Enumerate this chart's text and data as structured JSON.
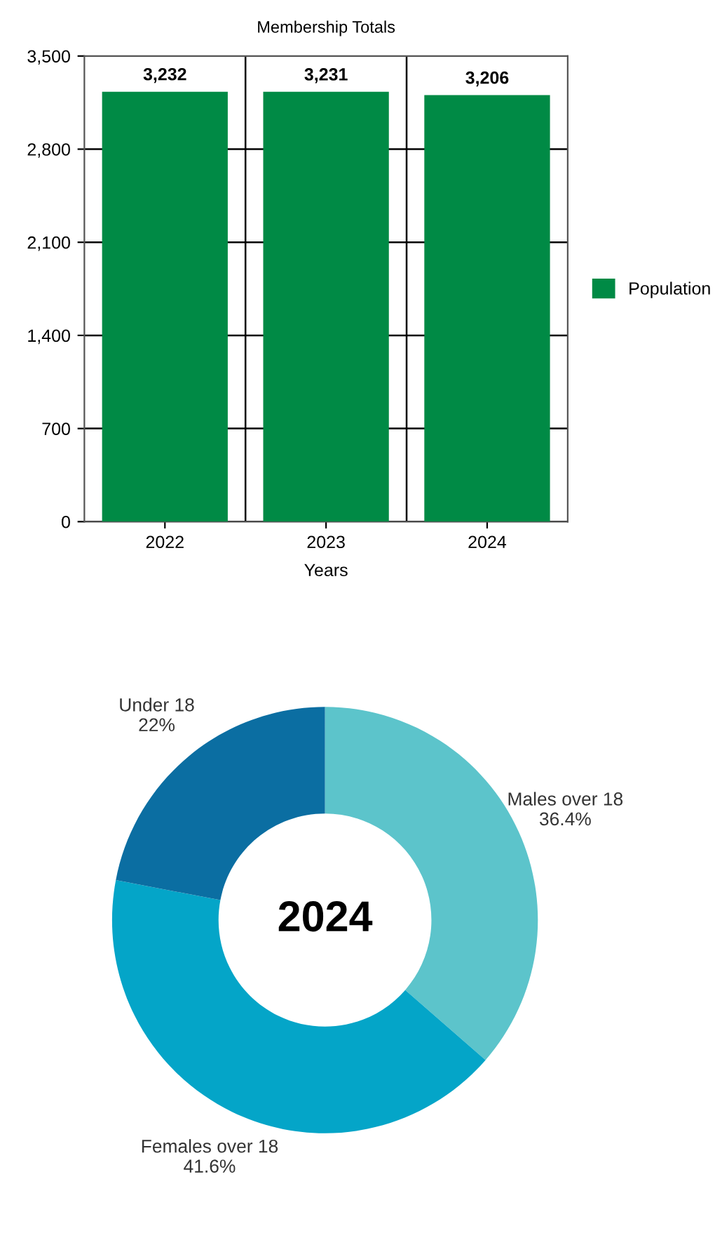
{
  "chart_data": [
    {
      "type": "bar",
      "title": "Membership Totals",
      "xlabel": "Years",
      "categories": [
        "2022",
        "2023",
        "2024"
      ],
      "series": [
        {
          "name": "Population",
          "color": "#008a45",
          "values": [
            3232,
            3231,
            3206
          ]
        }
      ],
      "ylim": [
        0,
        3500
      ],
      "yticks": [
        0,
        700,
        {
          "value": 1400,
          "label": "1,400"
        },
        {
          "value": 2100,
          "label": "2,100"
        },
        {
          "value": 2800,
          "label": "2,800"
        },
        {
          "value": 3500,
          "label": "3,500"
        }
      ],
      "grid": "y",
      "legend": "right",
      "value_labels": [
        "3,232",
        "3,231",
        "3,206"
      ]
    },
    {
      "type": "donut",
      "title": "2024",
      "categories": [
        "Males over 18",
        "Females over 18",
        "Under 18"
      ],
      "values": [
        36.4,
        41.6,
        22
      ],
      "value_labels": [
        "36.4%",
        "41.6%",
        "22%"
      ],
      "colors": [
        "#5cc4cb",
        "#04a5c8",
        "#0b6ea2"
      ]
    }
  ]
}
